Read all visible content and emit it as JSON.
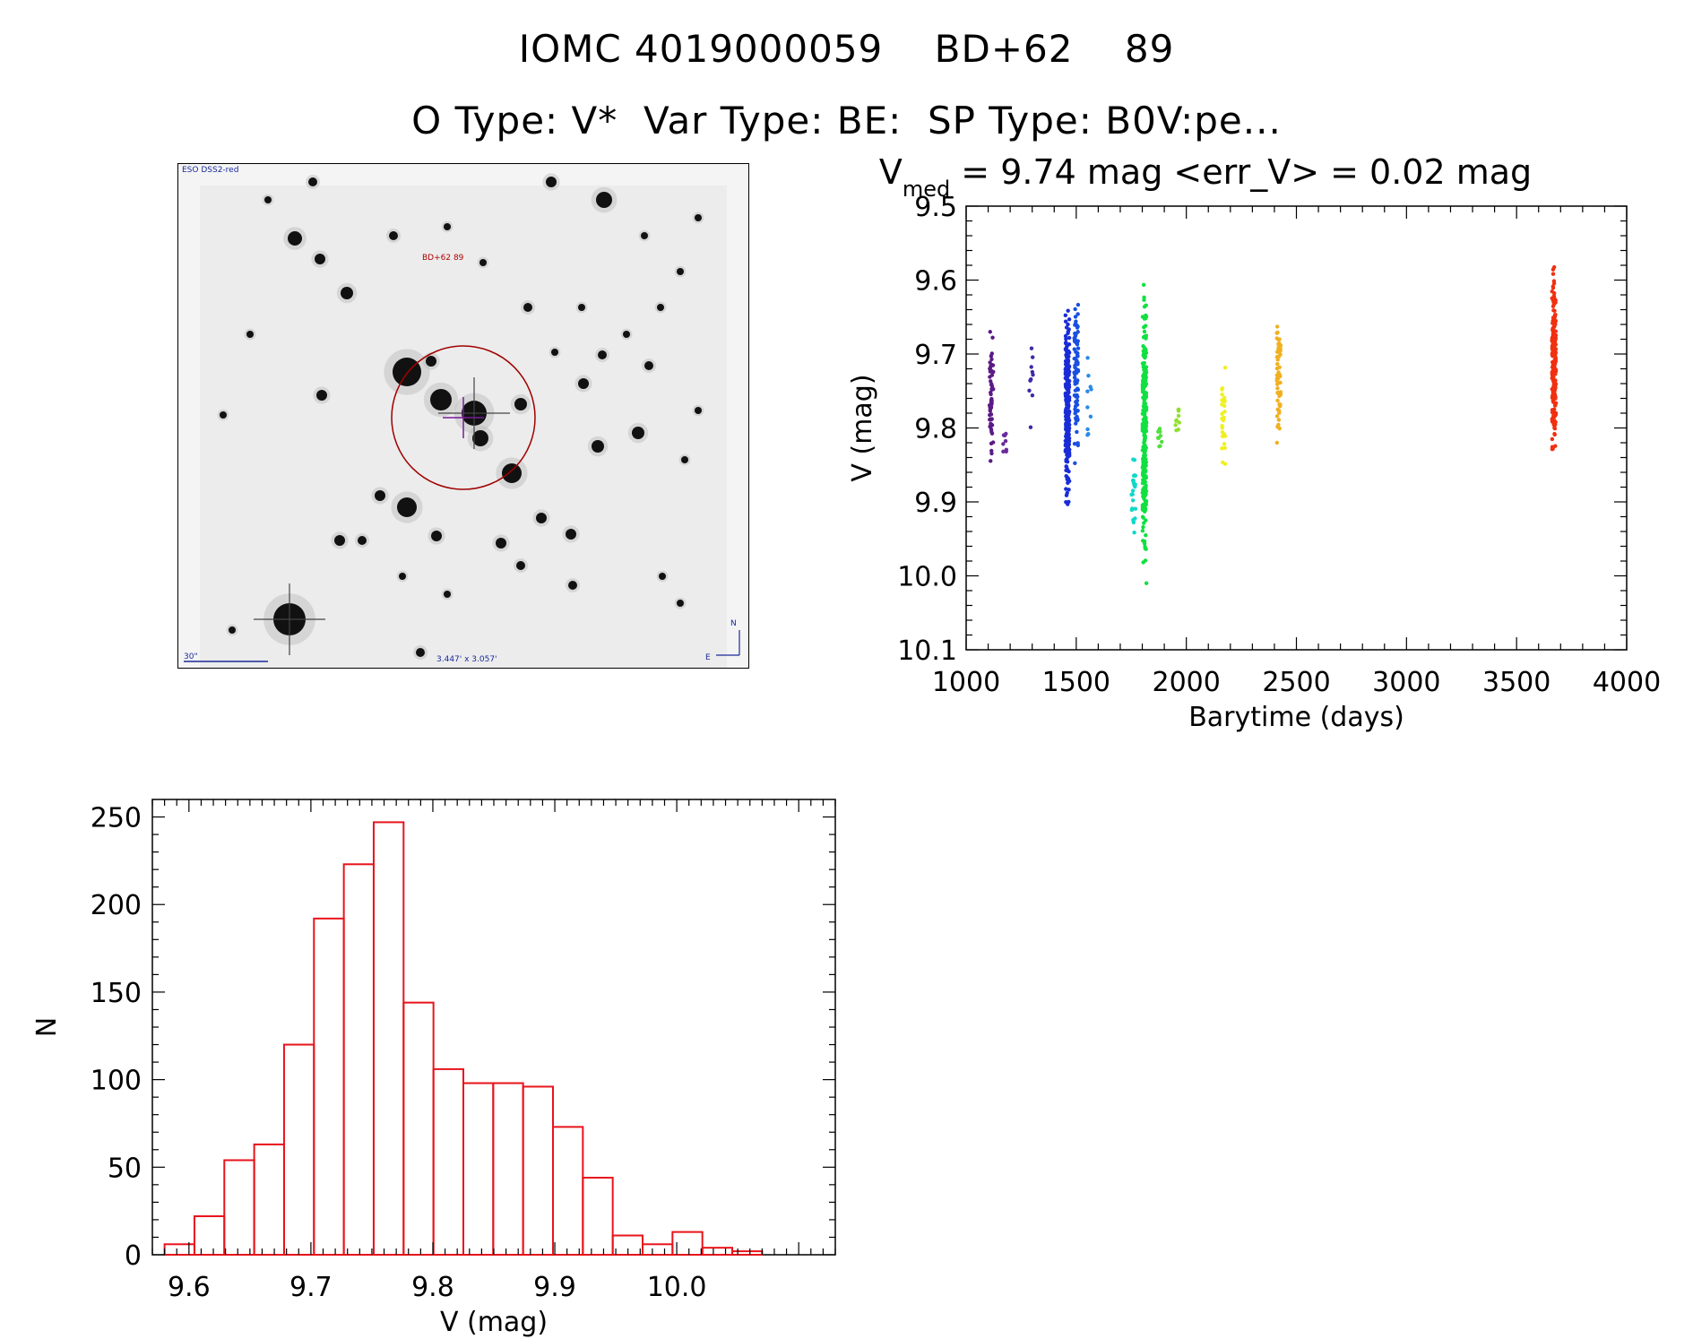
{
  "header": {
    "title_line1": "IOMC 4019000059    BD+62    89",
    "title_line2": "O Type: V*  Var Type: BE:  SP Type: B0V:pe..."
  },
  "finder_chart": {
    "survey_label": "ESO DSS2-red",
    "target_label": "BD+62 89",
    "scale_label": "30\"",
    "fov_label": "3.447' x 3.057'",
    "compass_n": "N",
    "compass_e": "E"
  },
  "chart_data": [
    {
      "type": "scatter",
      "title_prefix": "V",
      "title_subscript": "med",
      "title_rest": " = 9.74 mag <err_V> = 0.02 mag",
      "xlabel": "Barytime (days)",
      "ylabel": "V (mag)",
      "xlim": [
        1000,
        4000
      ],
      "ylim": [
        10.1,
        9.5
      ],
      "y_inverted": true,
      "xticks": [
        1000,
        1500,
        2000,
        2500,
        3000,
        3500,
        4000
      ],
      "yticks": [
        "9.5",
        "9.6",
        "9.7",
        "9.8",
        "9.9",
        "10.0",
        "10.1"
      ],
      "groups": [
        {
          "x": 1115,
          "ymin": 9.67,
          "ymax": 9.86,
          "color": "#5b1a86",
          "count": 60
        },
        {
          "x": 1175,
          "ymin": 9.8,
          "ymax": 9.84,
          "color": "#6a2a9a",
          "count": 8
        },
        {
          "x": 1295,
          "ymin": 9.67,
          "ymax": 9.81,
          "color": "#3c2aa8",
          "count": 10
        },
        {
          "x": 1460,
          "ymin": 9.64,
          "ymax": 9.92,
          "color": "#1a2cd6",
          "count": 260
        },
        {
          "x": 1500,
          "ymin": 9.61,
          "ymax": 9.86,
          "color": "#1a50e0",
          "count": 90
        },
        {
          "x": 1560,
          "ymin": 9.7,
          "ymax": 9.85,
          "color": "#2a8ae8",
          "count": 10
        },
        {
          "x": 1760,
          "ymin": 9.82,
          "ymax": 9.97,
          "color": "#10d8c8",
          "count": 25
        },
        {
          "x": 1810,
          "ymin": 9.6,
          "ymax": 10.01,
          "color": "#10e040",
          "count": 260
        },
        {
          "x": 1880,
          "ymin": 9.79,
          "ymax": 9.83,
          "color": "#50e040",
          "count": 10
        },
        {
          "x": 1960,
          "ymin": 9.76,
          "ymax": 9.82,
          "color": "#90e030",
          "count": 10
        },
        {
          "x": 2170,
          "ymin": 9.69,
          "ymax": 9.88,
          "color": "#f0f020",
          "count": 30
        },
        {
          "x": 2420,
          "ymin": 9.63,
          "ymax": 9.82,
          "color": "#f0b020",
          "count": 60
        },
        {
          "x": 3670,
          "ymin": 9.58,
          "ymax": 9.85,
          "color": "#f03010",
          "count": 230
        }
      ]
    },
    {
      "type": "bar",
      "style": "histogram",
      "xlabel": "V (mag)",
      "ylabel": "N",
      "xlim": [
        9.57,
        10.13
      ],
      "ylim": [
        0,
        260
      ],
      "xticks": [
        "9.6",
        "9.7",
        "9.8",
        "9.9",
        "10.0"
      ],
      "yticks": [
        "0",
        "50",
        "100",
        "150",
        "200",
        "250"
      ],
      "bin_width": 0.0245,
      "bin_start": 9.58,
      "counts": [
        6,
        22,
        54,
        63,
        120,
        192,
        223,
        247,
        144,
        106,
        98,
        98,
        96,
        73,
        44,
        11,
        6,
        13,
        4,
        2
      ],
      "color": "#e8141c"
    }
  ]
}
